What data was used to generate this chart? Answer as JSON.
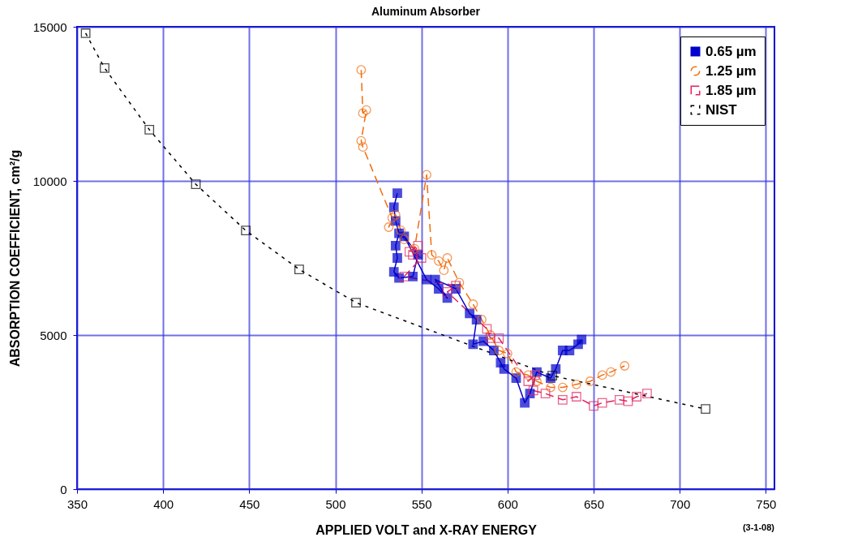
{
  "chart_data": {
    "type": "line",
    "title": "Aluminum Absorber",
    "xlabel": "APPLIED VOLT and X-RAY ENERGY",
    "ylabel": "ABSORPTION COEFFICIENT, cm²/g",
    "annotations": [
      "(3-1-08)"
    ],
    "xlim": [
      350,
      755
    ],
    "ylim": [
      0,
      15000
    ],
    "xticks": [
      350,
      400,
      450,
      500,
      550,
      600,
      650,
      700,
      750
    ],
    "yticks": [
      0,
      5000,
      10000,
      15000
    ],
    "grid": true,
    "legend": "top right",
    "series": [
      {
        "name": "0.65 µm",
        "color": "#0000cc",
        "marker": "square",
        "line_style": "solid",
        "x": [
          536,
          534,
          535,
          537,
          535,
          536,
          534,
          537,
          545,
          548,
          540,
          553,
          560,
          565,
          558,
          570,
          578,
          582,
          580,
          586,
          592,
          596,
          598,
          605,
          610,
          613,
          617,
          625,
          628,
          632,
          636,
          641,
          643
        ],
        "values": [
          9600,
          9150,
          8700,
          8300,
          7900,
          7500,
          7050,
          6850,
          6900,
          7600,
          8200,
          6800,
          6500,
          6200,
          6800,
          6500,
          5700,
          5500,
          4700,
          4800,
          4500,
          4100,
          3900,
          3600,
          2800,
          3100,
          3800,
          3600,
          3900,
          4500,
          4500,
          4700,
          4850
        ]
      },
      {
        "name": "1.25 µm",
        "color": "#f26c0d",
        "marker": "circle",
        "line_style": "dashed",
        "x": [
          515,
          516,
          518,
          515,
          516,
          533,
          531,
          535,
          538,
          540,
          546,
          553,
          556,
          560,
          563,
          565,
          572,
          580,
          585,
          590,
          595,
          600,
          605,
          612,
          617,
          625,
          632,
          640,
          648,
          655,
          660,
          668
        ],
        "values": [
          13600,
          12200,
          12300,
          11300,
          11100,
          8800,
          8500,
          8900,
          8400,
          8100,
          7800,
          10200,
          7600,
          7400,
          7100,
          7500,
          6700,
          6000,
          5500,
          5000,
          4500,
          4400,
          3800,
          3700,
          3500,
          3300,
          3300,
          3400,
          3500,
          3700,
          3800,
          4000
        ]
      },
      {
        "name": "1.85 µm",
        "color": "#e0245e",
        "marker": "square",
        "line_style": "dashed",
        "x": [
          545,
          548,
          543,
          550,
          540,
          570,
          565,
          588,
          590,
          595,
          612,
          616,
          615,
          622,
          632,
          640,
          650,
          655,
          665,
          670,
          675,
          681
        ],
        "values": [
          7600,
          7900,
          7700,
          7500,
          6900,
          6600,
          6400,
          5200,
          4900,
          4900,
          3500,
          3700,
          3200,
          3100,
          2900,
          3000,
          2700,
          2800,
          2900,
          2850,
          3000,
          3100
        ]
      },
      {
        "name": "NIST",
        "color": "#000000",
        "marker": "square",
        "line_style": "dotted",
        "x": [
          355,
          366,
          392,
          419,
          448,
          479,
          512,
          626,
          715
        ],
        "values": [
          14790,
          13660,
          11660,
          9890,
          8390,
          7130,
          6050,
          3680,
          2600
        ]
      }
    ]
  }
}
